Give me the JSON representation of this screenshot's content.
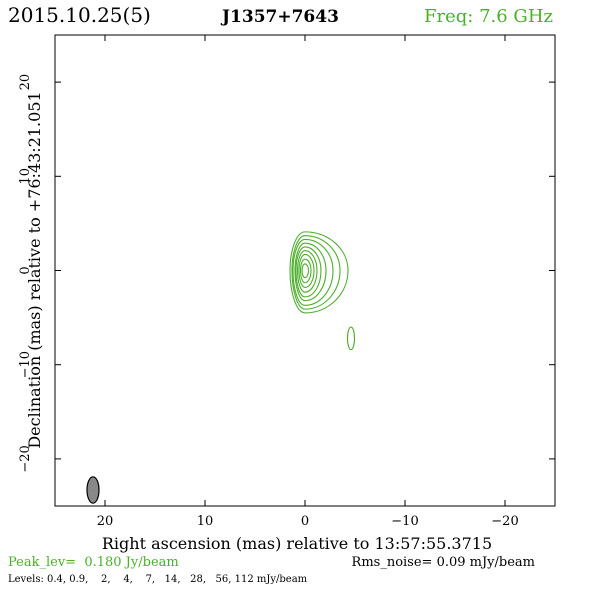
{
  "header": {
    "date_label": "2015.10.25(5)",
    "source_name": "J1357+7643",
    "freq_label": "Freq: 7.6 GHz"
  },
  "colors": {
    "contour": "#4caf2a",
    "frame": "#000000",
    "beam_fill": "#888888",
    "text": "#000000"
  },
  "chart_data": {
    "type": "contour",
    "xlabel": "Right ascension (mas) relative to 13:57:55.3715",
    "ylabel": "Declination (mas) relative to +76:43:21.051",
    "xlim": [
      25,
      -25
    ],
    "ylim": [
      -25,
      25
    ],
    "x_ticks": [
      20,
      10,
      0,
      -10,
      -20
    ],
    "x_tick_labels": [
      "20",
      "10",
      "0",
      "−10",
      "−20"
    ],
    "y_ticks": [
      -20,
      -10,
      0,
      10,
      20
    ],
    "y_tick_labels": [
      "−20",
      "−10",
      "0",
      "10",
      "20"
    ],
    "grid": false,
    "contour_levels_mJy_per_beam": [
      0.4,
      0.9,
      2,
      4,
      7,
      14,
      28,
      56,
      112
    ],
    "contours": [
      {
        "level": 0.4,
        "x": 0.0,
        "y": 0.0,
        "dx_left": 1.5,
        "dx_right": 4.3,
        "dy_up": 4.1,
        "dy_down": 4.5
      },
      {
        "level": 0.9,
        "x": 0.0,
        "y": 0.0,
        "dx_left": 1.3,
        "dx_right": 3.5,
        "dy_up": 3.7,
        "dy_down": 4.1
      },
      {
        "level": 2,
        "x": 0.0,
        "y": 0.0,
        "dx_left": 1.2,
        "dx_right": 2.8,
        "dy_up": 3.3,
        "dy_down": 3.7
      },
      {
        "level": 4,
        "x": 0.0,
        "y": 0.0,
        "dx_left": 1.0,
        "dx_right": 2.1,
        "dy_up": 2.9,
        "dy_down": 3.2
      },
      {
        "level": 7,
        "x": 0.0,
        "y": 0.0,
        "dx_left": 0.9,
        "dx_right": 1.6,
        "dy_up": 2.5,
        "dy_down": 2.8
      },
      {
        "level": 14,
        "x": 0.0,
        "y": 0.0,
        "dx_left": 0.75,
        "dx_right": 1.2,
        "dy_up": 2.1,
        "dy_down": 2.3
      },
      {
        "level": 28,
        "x": 0.0,
        "y": 0.0,
        "dx_left": 0.6,
        "dx_right": 0.9,
        "dy_up": 1.7,
        "dy_down": 1.8
      },
      {
        "level": 56,
        "x": 0.0,
        "y": 0.0,
        "dx_left": 0.45,
        "dx_right": 0.6,
        "dy_up": 1.2,
        "dy_down": 1.3
      },
      {
        "level": 112,
        "x": 0.0,
        "y": 0.0,
        "dx_left": 0.3,
        "dx_right": 0.35,
        "dy_up": 0.7,
        "dy_down": 0.75
      },
      {
        "level": 0.4,
        "x": -4.6,
        "y": -7.2,
        "dx_left": 0.35,
        "dx_right": 0.35,
        "dy_up": 1.2,
        "dy_down": 1.2
      }
    ],
    "beam": {
      "x": 21.2,
      "y": -23.3,
      "major": 2.8,
      "minor": 1.2,
      "pa_deg": 0
    },
    "peak_label": "Peak_lev=  0.180 Jy/beam",
    "rms_label": "Rms_noise= 0.09 mJy/beam",
    "levels_label": "Levels: 0.4, 0.9,    2,    4,    7,   14,   28,   56, 112 mJy/beam"
  }
}
